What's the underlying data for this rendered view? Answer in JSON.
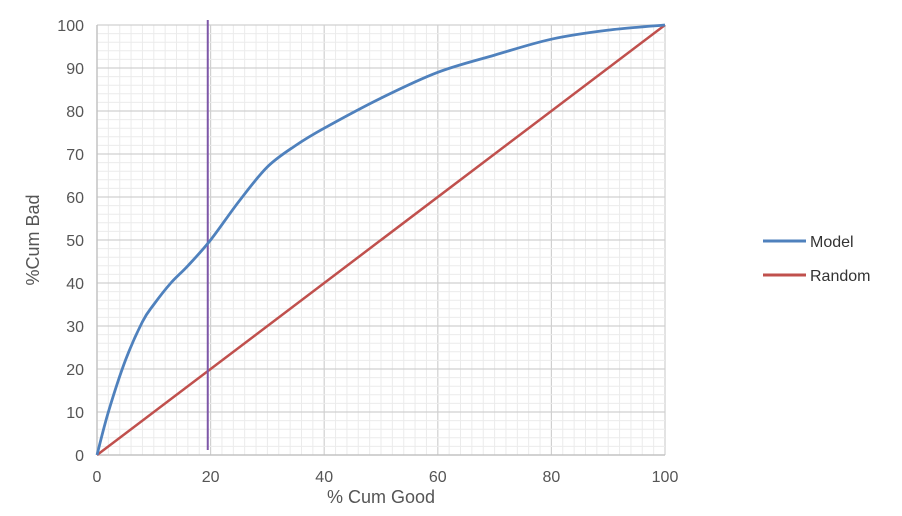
{
  "chart_data": {
    "type": "line",
    "xlabel": "% Cum Good",
    "ylabel": "%Cum Bad",
    "xlim": [
      0,
      100
    ],
    "ylim": [
      0,
      100
    ],
    "x_ticks": [
      "0",
      "20",
      "40",
      "60",
      "80",
      "100"
    ],
    "y_ticks": [
      "0",
      "10",
      "20",
      "30",
      "40",
      "50",
      "60",
      "70",
      "80",
      "90",
      "100"
    ],
    "grid": true,
    "legend_position": "right",
    "series": [
      {
        "name": "Model",
        "color": "#4F81BD",
        "x": [
          0,
          2,
          5,
          8,
          10,
          13,
          16,
          20,
          25,
          30,
          35,
          40,
          50,
          60,
          70,
          80,
          90,
          100
        ],
        "y": [
          0,
          10,
          22,
          31,
          35,
          40,
          44,
          50,
          59,
          67,
          72,
          76,
          83,
          89,
          93,
          96.7,
          98.8,
          100
        ]
      },
      {
        "name": "Random",
        "color": "#C0504D",
        "x": [
          0,
          100
        ],
        "y": [
          0,
          100
        ]
      }
    ],
    "reference_line": {
      "x": 19.5,
      "color": "#7E57A8"
    }
  }
}
